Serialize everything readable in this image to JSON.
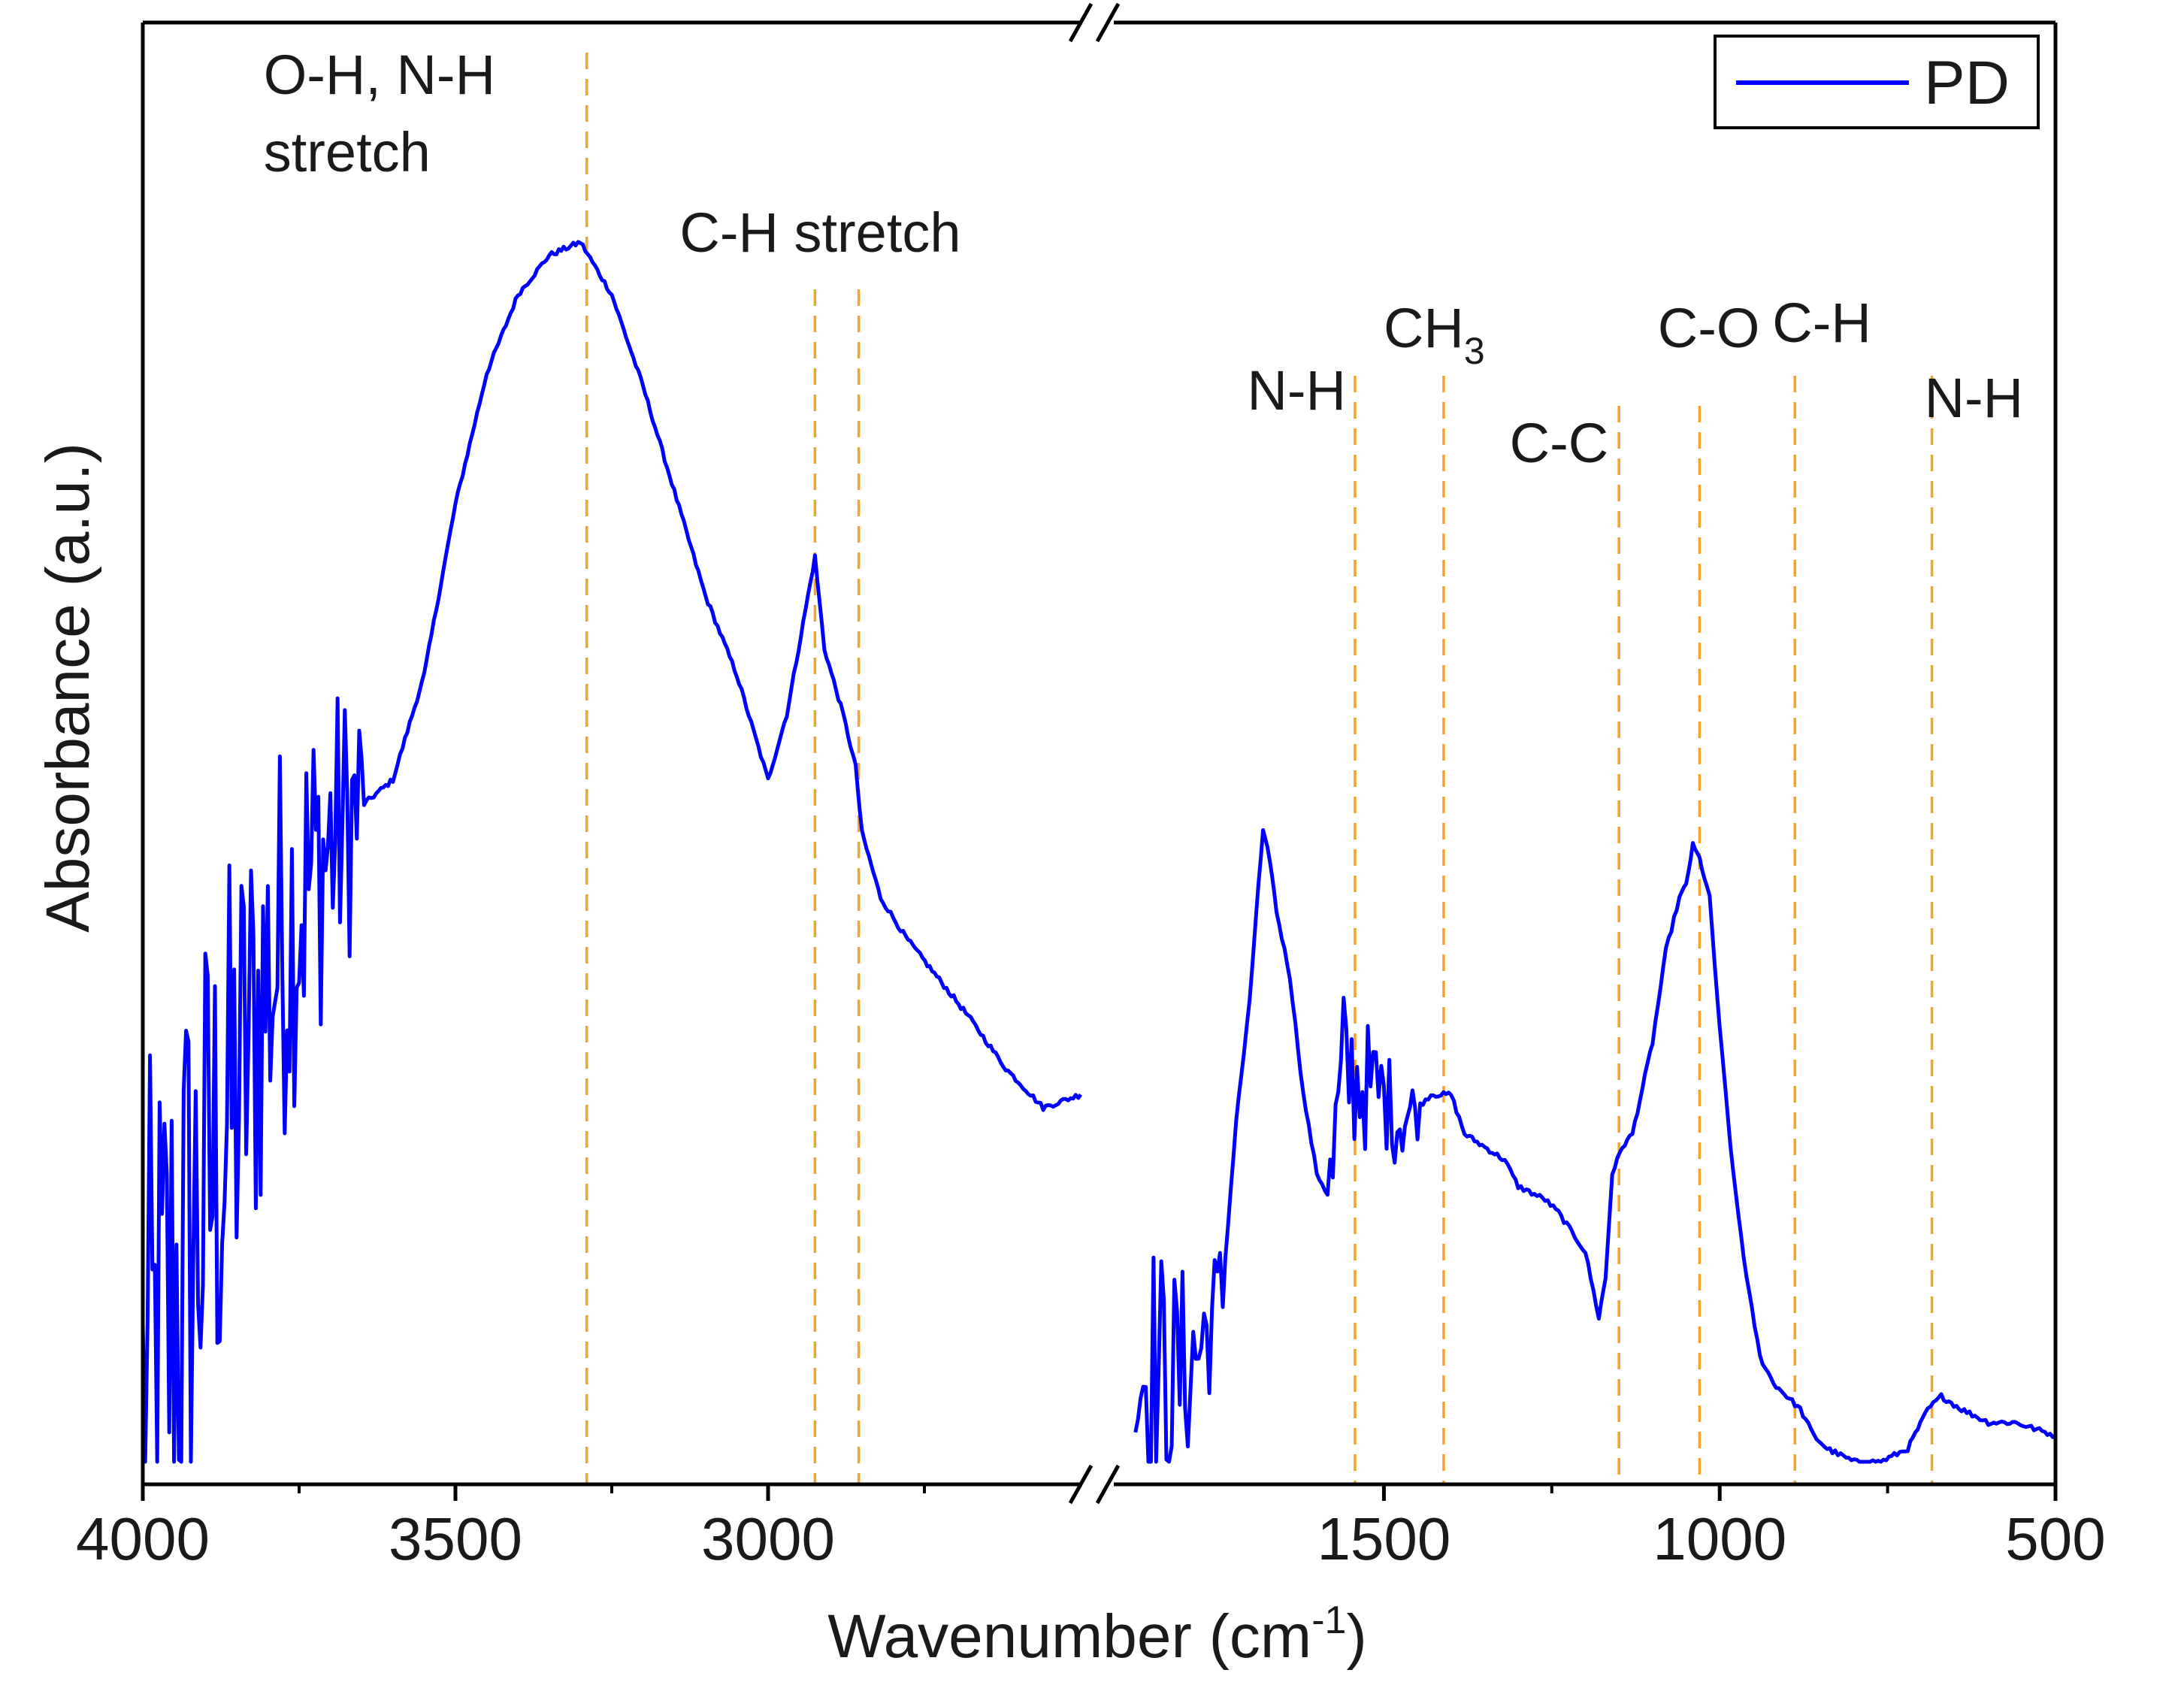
{
  "chart_data": {
    "type": "line",
    "title": "",
    "xlabel": {
      "main": "Wavenumber (cm",
      "sup": "-1",
      "close": ")"
    },
    "ylabel": "Absorbance (a.u.)",
    "x_reversed": true,
    "x_axis_break": true,
    "segments": [
      {
        "xlim": [
          4000,
          2500
        ],
        "x_ticks": [
          4000,
          3500,
          3000
        ],
        "tick_labels": [
          "4000",
          "3500",
          "3000"
        ]
      },
      {
        "xlim": [
          1900,
          500
        ],
        "x_ticks": [
          1500,
          1000,
          500
        ],
        "tick_labels": [
          "1500",
          "1000",
          "500"
        ]
      }
    ],
    "y_ticks_labeled": false,
    "ylim": [
      0,
      1
    ],
    "legend": {
      "position": "top-right",
      "entries": [
        "PD"
      ]
    },
    "series": [
      {
        "name": "PD",
        "color": "#0000ff",
        "noisy_ranges": [
          [
            4000,
            3650,
            0.55
          ],
          [
            1870,
            1740,
            0.25
          ],
          [
            1580,
            1450,
            0.14
          ]
        ],
        "segments": [
          [
            [
              4000,
              0.02
            ],
            [
              3950,
              0.12
            ],
            [
              3900,
              0.2
            ],
            [
              3850,
              0.28
            ],
            [
              3800,
              0.37
            ],
            [
              3750,
              0.43
            ],
            [
              3700,
              0.47
            ],
            [
              3650,
              0.5
            ],
            [
              3600,
              0.52
            ],
            [
              3550,
              0.6
            ],
            [
              3500,
              0.73
            ],
            [
              3450,
              0.83
            ],
            [
              3400,
              0.89
            ],
            [
              3350,
              0.92
            ],
            [
              3300,
              0.93
            ],
            [
              3250,
              0.89
            ],
            [
              3200,
              0.82
            ],
            [
              3150,
              0.74
            ],
            [
              3100,
              0.66
            ],
            [
              3050,
              0.6
            ],
            [
              3000,
              0.52
            ],
            [
              2970,
              0.57
            ],
            [
              2940,
              0.65
            ],
            [
              2925,
              0.69
            ],
            [
              2910,
              0.62
            ],
            [
              2880,
              0.57
            ],
            [
              2860,
              0.53
            ],
            [
              2850,
              0.48
            ],
            [
              2820,
              0.43
            ],
            [
              2780,
              0.4
            ],
            [
              2730,
              0.37
            ],
            [
              2680,
              0.34
            ],
            [
              2620,
              0.3
            ],
            [
              2560,
              0.27
            ],
            [
              2500,
              0.28
            ]
          ],
          [
            [
              1870,
              0.08
            ],
            [
              1820,
              0.06
            ],
            [
              1780,
              0.08
            ],
            [
              1740,
              0.13
            ],
            [
              1720,
              0.26
            ],
            [
              1700,
              0.35
            ],
            [
              1690,
              0.42
            ],
            [
              1680,
              0.48
            ],
            [
              1670,
              0.46
            ],
            [
              1660,
              0.42
            ],
            [
              1640,
              0.37
            ],
            [
              1620,
              0.28
            ],
            [
              1600,
              0.22
            ],
            [
              1580,
              0.2
            ],
            [
              1560,
              0.3
            ],
            [
              1540,
              0.29
            ],
            [
              1500,
              0.28
            ],
            [
              1480,
              0.26
            ],
            [
              1450,
              0.27
            ],
            [
              1430,
              0.28
            ],
            [
              1400,
              0.28
            ],
            [
              1380,
              0.25
            ],
            [
              1350,
              0.24
            ],
            [
              1320,
              0.23
            ],
            [
              1300,
              0.21
            ],
            [
              1260,
              0.2
            ],
            [
              1240,
              0.19
            ],
            [
              1200,
              0.16
            ],
            [
              1180,
              0.11
            ],
            [
              1170,
              0.14
            ],
            [
              1160,
              0.22
            ],
            [
              1145,
              0.24
            ],
            [
              1130,
              0.25
            ],
            [
              1100,
              0.32
            ],
            [
              1080,
              0.39
            ],
            [
              1060,
              0.43
            ],
            [
              1050,
              0.44
            ],
            [
              1040,
              0.47
            ],
            [
              1030,
              0.46
            ],
            [
              1015,
              0.43
            ],
            [
              1000,
              0.33
            ],
            [
              980,
              0.22
            ],
            [
              960,
              0.14
            ],
            [
              940,
              0.08
            ],
            [
              920,
              0.06
            ],
            [
              900,
              0.05
            ],
            [
              880,
              0.04
            ],
            [
              860,
              0.02
            ],
            [
              840,
              0.01
            ],
            [
              800,
              0.0
            ],
            [
              760,
              0.0
            ],
            [
              720,
              0.01
            ],
            [
              690,
              0.04
            ],
            [
              670,
              0.05
            ],
            [
              640,
              0.04
            ],
            [
              600,
              0.03
            ],
            [
              560,
              0.03
            ],
            [
              500,
              0.02
            ]
          ]
        ]
      }
    ],
    "annotations": [
      {
        "x": 3290,
        "lines": [
          "O-H, N-H",
          "stretch"
        ],
        "sub": ""
      },
      {
        "x": 2925,
        "lines": [
          "C-H stretch"
        ],
        "sub": ""
      },
      {
        "x": 2855,
        "lines": [],
        "sub": ""
      },
      {
        "x": 1543,
        "lines": [
          "N-H"
        ],
        "sub": ""
      },
      {
        "x": 1411,
        "lines": [
          "CH"
        ],
        "sub": "3"
      },
      {
        "x": 1150,
        "lines": [
          "C-C"
        ],
        "sub": ""
      },
      {
        "x": 1030,
        "lines": [
          "C-O"
        ],
        "sub": ""
      },
      {
        "x": 888,
        "lines": [
          "C-H"
        ],
        "sub": ""
      },
      {
        "x": 684,
        "lines": [
          "N-H"
        ],
        "sub": ""
      }
    ]
  }
}
